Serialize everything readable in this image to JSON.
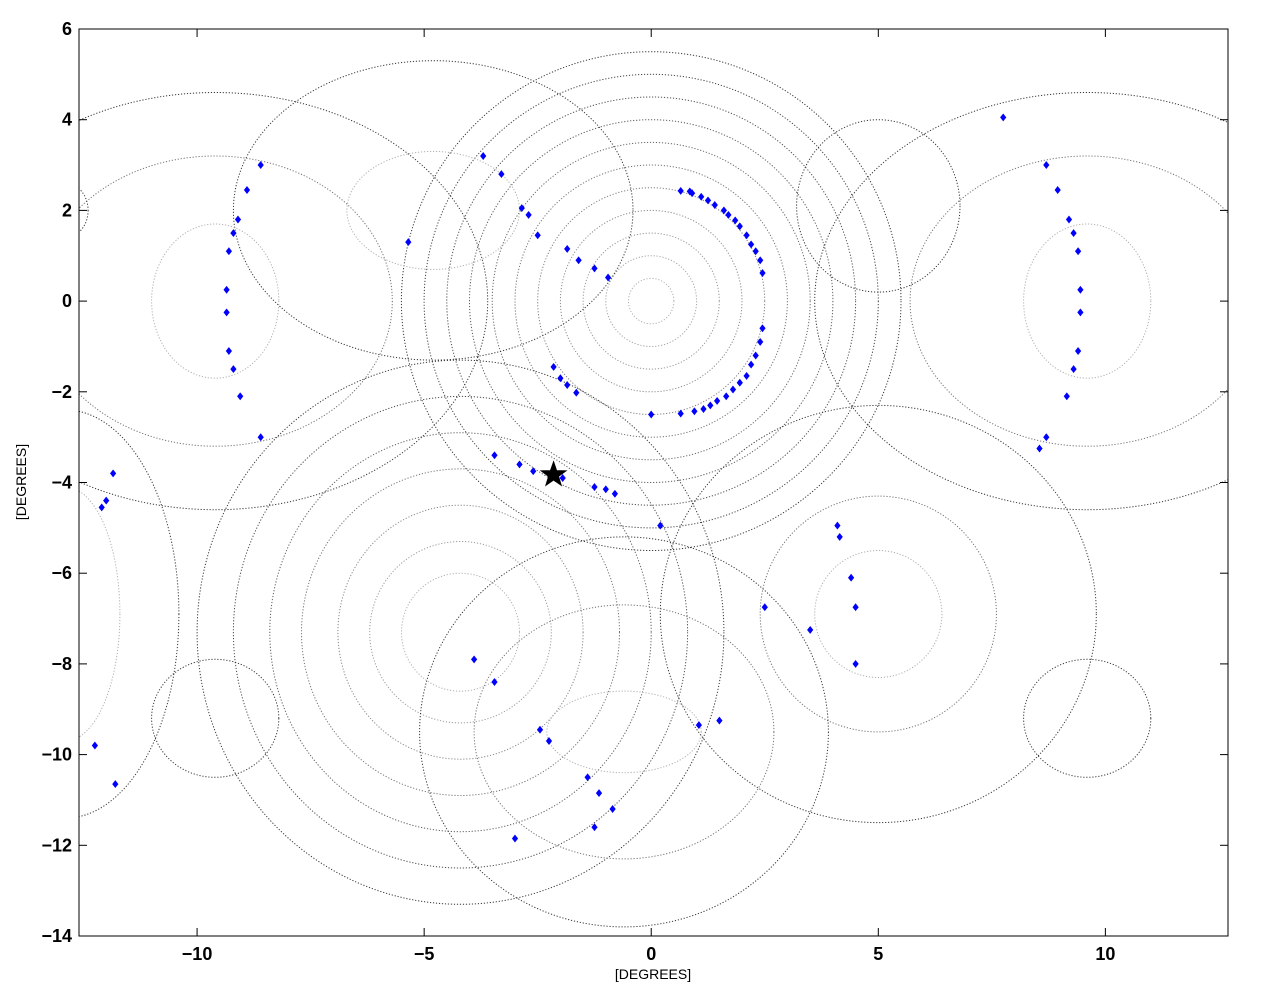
{
  "chart_data": {
    "type": "scatter",
    "title": "",
    "xlabel": "[DEGREES]",
    "ylabel": "[DEGREES]",
    "xlim": [
      -12.6,
      12.7
    ],
    "ylim": [
      -14,
      6
    ],
    "xticks": [
      -10,
      -5,
      0,
      5,
      10
    ],
    "xtick_labels": [
      "−10",
      "−5",
      "0",
      "5",
      "10"
    ],
    "yticks": [
      6,
      4,
      2,
      0,
      -2,
      -4,
      -6,
      -8,
      -10,
      -12,
      -14
    ],
    "ytick_labels": [
      "6",
      "4",
      "2",
      "0",
      "−2",
      "−4",
      "−6",
      "−8",
      "−10",
      "−12",
      "−14"
    ],
    "grid": false,
    "legend": "none",
    "colors": {
      "points": "#0000ff",
      "star": "#000000",
      "contours": "#555555"
    },
    "contour_families": [
      {
        "cx": 0,
        "cy": 0,
        "rx": [
          0.5,
          1.0,
          1.5,
          2.0,
          2.5,
          3.0,
          3.5,
          4.0,
          4.5,
          5.0,
          5.5
        ],
        "ry": [
          0.5,
          1.0,
          1.5,
          2.0,
          2.5,
          3.0,
          3.5,
          4.0,
          4.5,
          5.0,
          5.5
        ]
      },
      {
        "cx": -4.2,
        "cy": -7.3,
        "rx": [
          1.3,
          2.0,
          2.7,
          3.5,
          4.2,
          5.0,
          5.8
        ],
        "ry": [
          1.3,
          2.0,
          2.8,
          3.6,
          4.4,
          5.2,
          6.0
        ]
      },
      {
        "cx": -4.8,
        "cy": 2.0,
        "rx": [
          1.9,
          4.4
        ],
        "ry": [
          1.3,
          3.3
        ]
      },
      {
        "cx": 9.6,
        "cy": 0,
        "rx": [
          1.4,
          3.9,
          6.0
        ],
        "ry": [
          1.7,
          3.2,
          4.6
        ]
      },
      {
        "cx": -9.6,
        "cy": 0,
        "rx": [
          1.4,
          3.9,
          6.0
        ],
        "ry": [
          1.7,
          3.2,
          4.6
        ]
      },
      {
        "cx": 5.0,
        "cy": -6.9,
        "rx": [
          1.4,
          2.6,
          4.8
        ],
        "ry": [
          1.4,
          2.6,
          4.6
        ]
      },
      {
        "cx": -9.6,
        "cy": -9.2,
        "rx": [
          1.4
        ],
        "ry": [
          1.3
        ]
      },
      {
        "cx": 9.6,
        "cy": -9.2,
        "rx": [
          1.4
        ],
        "ry": [
          1.3
        ]
      },
      {
        "cx": -0.6,
        "cy": -9.5,
        "rx": [
          1.7,
          3.3,
          4.5
        ],
        "ry": [
          0.9,
          2.8,
          4.3
        ]
      },
      {
        "cx": 5.0,
        "cy": 2.1,
        "rx": [
          1.8
        ],
        "ry": [
          1.9
        ]
      },
      {
        "cx": -12.9,
        "cy": -6.9,
        "rx": [
          1.2,
          2.5
        ],
        "ry": [
          2.8,
          4.5
        ]
      },
      {
        "cx": -12.9,
        "cy": 2.0,
        "rx": [
          0.5
        ],
        "ry": [
          0.6
        ]
      },
      {
        "cx": -4.2,
        "cy": -14.6,
        "rx": [
          1.1
        ],
        "ry": [
          0.5
        ]
      }
    ],
    "points": [
      [
        0.65,
        2.43
      ],
      [
        0.85,
        2.42
      ],
      [
        0.9,
        2.38
      ],
      [
        1.1,
        2.3
      ],
      [
        1.25,
        2.22
      ],
      [
        1.4,
        2.12
      ],
      [
        1.6,
        2.0
      ],
      [
        1.7,
        1.9
      ],
      [
        1.85,
        1.78
      ],
      [
        1.95,
        1.65
      ],
      [
        2.1,
        1.45
      ],
      [
        2.2,
        1.25
      ],
      [
        2.3,
        1.1
      ],
      [
        2.4,
        0.9
      ],
      [
        2.45,
        0.62
      ],
      [
        2.45,
        -0.6
      ],
      [
        2.4,
        -0.9
      ],
      [
        2.3,
        -1.2
      ],
      [
        2.2,
        -1.4
      ],
      [
        2.1,
        -1.65
      ],
      [
        1.95,
        -1.8
      ],
      [
        1.8,
        -1.95
      ],
      [
        1.65,
        -2.1
      ],
      [
        1.45,
        -2.2
      ],
      [
        1.3,
        -2.3
      ],
      [
        1.15,
        -2.38
      ],
      [
        0.95,
        -2.43
      ],
      [
        0.65,
        -2.48
      ],
      [
        0.0,
        -2.5
      ],
      [
        -2.15,
        -1.45
      ],
      [
        -2.0,
        -1.7
      ],
      [
        -1.85,
        -1.85
      ],
      [
        -1.65,
        -2.02
      ],
      [
        -3.3,
        2.8
      ],
      [
        -3.7,
        3.2
      ],
      [
        -2.85,
        2.05
      ],
      [
        -2.7,
        1.9
      ],
      [
        -2.5,
        1.45
      ],
      [
        -1.85,
        1.15
      ],
      [
        -1.6,
        0.9
      ],
      [
        -1.25,
        0.72
      ],
      [
        -0.95,
        0.52
      ],
      [
        -5.35,
        1.3
      ],
      [
        -9.35,
        0.25
      ],
      [
        -9.35,
        -0.25
      ],
      [
        -9.3,
        1.1
      ],
      [
        -9.2,
        1.5
      ],
      [
        -9.1,
        1.8
      ],
      [
        -8.9,
        2.45
      ],
      [
        -8.6,
        3.0
      ],
      [
        -9.3,
        -1.1
      ],
      [
        -9.2,
        -1.5
      ],
      [
        -9.05,
        -2.1
      ],
      [
        -8.6,
        -3.0
      ],
      [
        9.45,
        0.25
      ],
      [
        9.45,
        -0.25
      ],
      [
        9.4,
        1.1
      ],
      [
        9.3,
        1.5
      ],
      [
        9.2,
        1.8
      ],
      [
        8.95,
        2.45
      ],
      [
        8.7,
        3.0
      ],
      [
        7.75,
        4.05
      ],
      [
        9.4,
        -1.1
      ],
      [
        9.3,
        -1.5
      ],
      [
        9.15,
        -2.1
      ],
      [
        8.7,
        -3.0
      ],
      [
        8.55,
        -3.25
      ],
      [
        -3.45,
        -3.4
      ],
      [
        -2.9,
        -3.6
      ],
      [
        -2.6,
        -3.75
      ],
      [
        -1.95,
        -3.9
      ],
      [
        -1.25,
        -4.1
      ],
      [
        -1.0,
        -4.15
      ],
      [
        -0.8,
        -4.25
      ],
      [
        0.2,
        -4.95
      ],
      [
        4.1,
        -4.95
      ],
      [
        4.15,
        -5.2
      ],
      [
        4.4,
        -6.1
      ],
      [
        4.5,
        -6.75
      ],
      [
        2.5,
        -6.75
      ],
      [
        3.5,
        -7.25
      ],
      [
        4.5,
        -8.0
      ],
      [
        -3.9,
        -7.9
      ],
      [
        -3.45,
        -8.4
      ],
      [
        -2.45,
        -9.45
      ],
      [
        -2.25,
        -9.7
      ],
      [
        -1.4,
        -10.5
      ],
      [
        -1.15,
        -10.85
      ],
      [
        -0.85,
        -11.2
      ],
      [
        -1.25,
        -11.6
      ],
      [
        -3.0,
        -11.85
      ],
      [
        1.05,
        -9.35
      ],
      [
        1.5,
        -9.25
      ],
      [
        -12.25,
        -9.8
      ],
      [
        -11.8,
        -10.65
      ],
      [
        -12.1,
        -4.55
      ],
      [
        -12.0,
        -4.4
      ],
      [
        -11.85,
        -3.8
      ]
    ],
    "highlight": {
      "marker": "star",
      "x": -2.15,
      "y": -3.83
    }
  }
}
